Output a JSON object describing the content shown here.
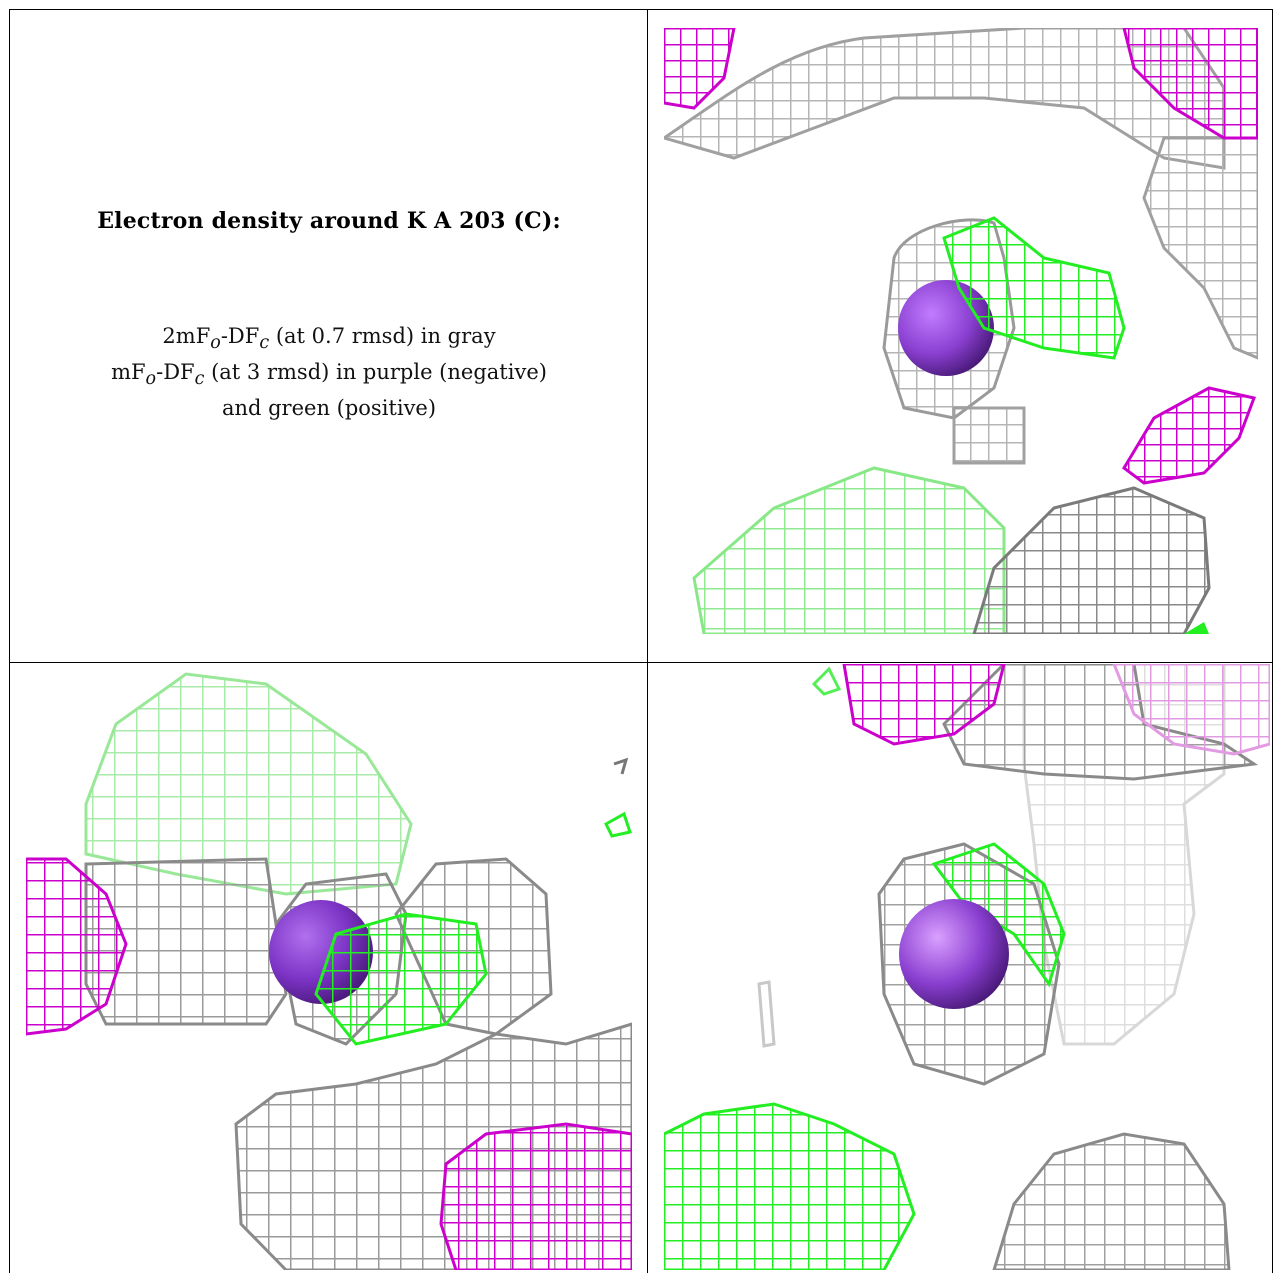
{
  "caption": {
    "title": "Electron density around K A 203 (C):",
    "line1_a": "2mF",
    "line1_sub_o": "o",
    "line1_b": "-DF",
    "line1_sub_c": "c",
    "line1_c": " (at 0.7 rmsd) in gray",
    "line2_a": "mF",
    "line2_sub_o": "o",
    "line2_b": "-DF",
    "line2_sub_c": "c",
    "line2_c": " (at 3 rmsd) in purple (negative)",
    "line3": "and green (positive)"
  },
  "colors": {
    "gray_mesh": "#b8b8b8",
    "dark_gray_mesh": "#8a8a8a",
    "purple_mesh": "#cc00cc",
    "green_mesh": "#22ee22",
    "light_green_mesh": "#88ee88",
    "ion_sphere": "#8a3fd0"
  },
  "panels": [
    {
      "name": "view-top-right",
      "ion": "K"
    },
    {
      "name": "view-bottom-left",
      "ion": "K"
    },
    {
      "name": "view-bottom-right",
      "ion": "K"
    }
  ]
}
